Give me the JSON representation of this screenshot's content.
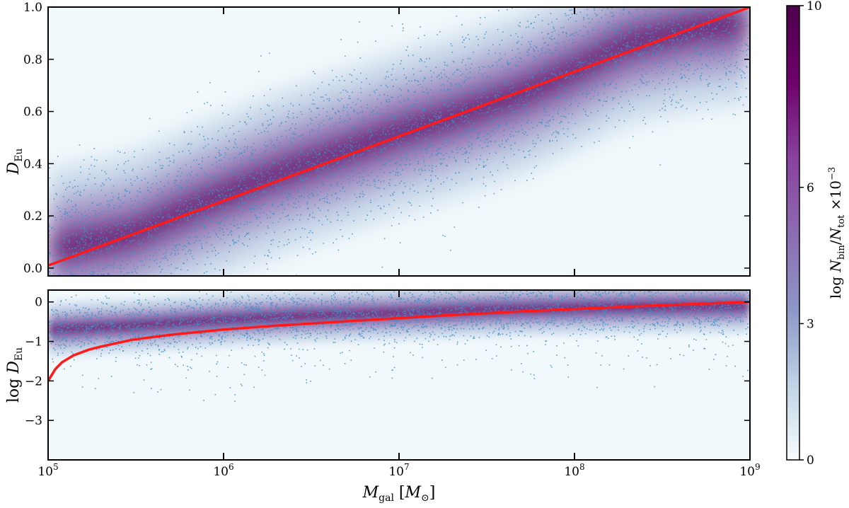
{
  "chart_data": [
    {
      "type": "scatter",
      "panel": "top",
      "xlabel": "M_gal [M_⊙]",
      "ylabel": "D_Eu",
      "xscale": "log",
      "xlim": [
        100000,
        1000000000
      ],
      "ylim": [
        -0.03,
        1.0
      ],
      "y_ticks": [
        "0.0",
        "0.2",
        "0.4",
        "0.6",
        "0.8",
        "1.0"
      ],
      "y_tick_values": [
        0.0,
        0.2,
        0.4,
        0.6,
        0.8,
        1.0
      ],
      "scatter_color": "#3d8fc7",
      "density_ridge": {
        "x": [
          100000,
          150000,
          300000,
          600000,
          1000000,
          2000000,
          5000000,
          10000000,
          20000000,
          50000000,
          100000000,
          200000000,
          500000000,
          1000000000
        ],
        "y": [
          0.07,
          0.09,
          0.13,
          0.22,
          0.28,
          0.36,
          0.45,
          0.52,
          0.58,
          0.67,
          0.76,
          0.86,
          0.92,
          0.94
        ]
      },
      "series": [
        {
          "type": "line",
          "color": "#ff1a1a",
          "x": [
            100000,
            1000000000
          ],
          "y": [
            0.01,
            1.0
          ]
        }
      ]
    },
    {
      "type": "scatter",
      "panel": "bottom",
      "xlabel": "M_gal [M_⊙]",
      "ylabel": "log D_Eu",
      "xscale": "log",
      "xlim": [
        100000,
        1000000000
      ],
      "ylim": [
        -4.0,
        0.3
      ],
      "x_ticks": [
        "10^5",
        "10^6",
        "10^7",
        "10^8",
        "10^9"
      ],
      "x_tick_values": [
        100000,
        1000000,
        10000000,
        100000000,
        1000000000
      ],
      "y_ticks": [
        "0",
        "−1",
        "−2",
        "−3"
      ],
      "y_tick_values": [
        0,
        -1,
        -2,
        -3
      ],
      "density_ridge": {
        "x": [
          100000,
          300000,
          1000000,
          3000000,
          10000000,
          30000000,
          100000000,
          300000000,
          1000000000
        ],
        "y": [
          -0.7,
          -0.6,
          -0.45,
          -0.35,
          -0.28,
          -0.2,
          -0.15,
          -0.12,
          -0.1
        ]
      },
      "series": [
        {
          "type": "line",
          "color": "#ff1a1a",
          "x": [
            100000,
            110000,
            120000,
            140000,
            170000,
            200000,
            300000,
            500000,
            1000000,
            2000000,
            5000000,
            10000000,
            20000000,
            50000000,
            100000000,
            200000000,
            500000000,
            1000000000
          ],
          "y": [
            -2.0,
            -1.7,
            -1.53,
            -1.35,
            -1.21,
            -1.13,
            -0.96,
            -0.83,
            -0.7,
            -0.6,
            -0.49,
            -0.41,
            -0.33,
            -0.24,
            -0.18,
            -0.12,
            -0.05,
            0.0
          ]
        }
      ]
    }
  ],
  "colorbar": {
    "label": "log N_bin/N_tot ×10^−3",
    "range": [
      0,
      10
    ],
    "ticks": [
      "0",
      "3",
      "6",
      "10"
    ],
    "tick_values": [
      0,
      3,
      6,
      10
    ],
    "colormap": [
      "#f7fcfd",
      "#bfd3e6",
      "#8c96c6",
      "#8c6bb1",
      "#88419d",
      "#6e016b",
      "#4d004b"
    ]
  }
}
